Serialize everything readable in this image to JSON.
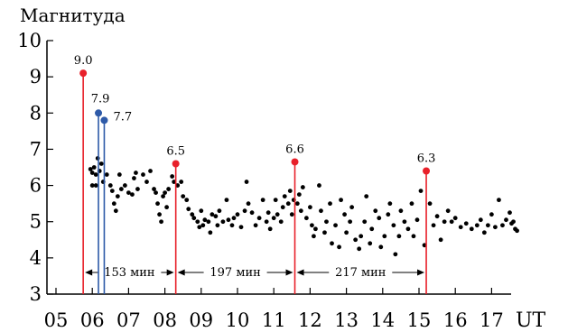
{
  "chart_data": {
    "type": "scatter",
    "ylabel": "Магнитуда",
    "xlabel": "UT",
    "ylim": [
      3,
      10
    ],
    "xlim": [
      5,
      18
    ],
    "x_ticks": [
      "05",
      "06",
      "07",
      "08",
      "09",
      "10",
      "11",
      "12",
      "13",
      "14",
      "15",
      "16",
      "17"
    ],
    "y_ticks": [
      "3",
      "4",
      "5",
      "6",
      "7",
      "8",
      "9",
      "10"
    ],
    "grid": false,
    "colors": {
      "dots": "#000000",
      "red": "#e8202a",
      "blue": "#2e5aa8"
    },
    "main_shocks": [
      {
        "x": 5.75,
        "y": 9.1,
        "label": "9.0",
        "color": "red"
      },
      {
        "x": 6.17,
        "y": 8.0,
        "label": "7.9",
        "color": "blue"
      },
      {
        "x": 6.33,
        "y": 7.8,
        "label": "7.7",
        "color": "blue"
      },
      {
        "x": 8.3,
        "y": 6.6,
        "label": "6.5",
        "color": "red"
      },
      {
        "x": 11.58,
        "y": 6.65,
        "label": "6.6",
        "color": "red"
      },
      {
        "x": 15.2,
        "y": 6.4,
        "label": "6.3",
        "color": "red"
      }
    ],
    "intervals": [
      {
        "from": 5.75,
        "to": 8.3,
        "label": "153 мин"
      },
      {
        "from": 8.3,
        "to": 11.58,
        "label": "197 мин"
      },
      {
        "from": 11.58,
        "to": 15.2,
        "label": "217 мин"
      }
    ],
    "aftershocks": [
      [
        5.95,
        6.45
      ],
      [
        6.0,
        6.35
      ],
      [
        6.05,
        6.5
      ],
      [
        6.1,
        6.3
      ],
      [
        6.15,
        6.75
      ],
      [
        6.2,
        6.4
      ],
      [
        6.25,
        6.6
      ],
      [
        6.0,
        6.0
      ],
      [
        6.1,
        6.0
      ],
      [
        6.3,
        6.1
      ],
      [
        6.4,
        6.3
      ],
      [
        6.5,
        6.0
      ],
      [
        6.55,
        5.85
      ],
      [
        6.6,
        5.5
      ],
      [
        6.65,
        5.3
      ],
      [
        6.7,
        5.7
      ],
      [
        6.75,
        6.3
      ],
      [
        6.8,
        5.9
      ],
      [
        6.9,
        6.0
      ],
      [
        7.0,
        5.8
      ],
      [
        7.1,
        5.75
      ],
      [
        7.15,
        6.2
      ],
      [
        7.2,
        6.35
      ],
      [
        7.25,
        5.9
      ],
      [
        7.4,
        6.3
      ],
      [
        7.5,
        6.1
      ],
      [
        7.6,
        6.4
      ],
      [
        7.7,
        5.9
      ],
      [
        7.75,
        5.8
      ],
      [
        7.8,
        5.5
      ],
      [
        7.85,
        5.2
      ],
      [
        7.9,
        5.0
      ],
      [
        7.95,
        5.7
      ],
      [
        8.0,
        5.8
      ],
      [
        8.05,
        5.4
      ],
      [
        8.1,
        5.9
      ],
      [
        8.2,
        6.25
      ],
      [
        8.25,
        6.1
      ],
      [
        8.35,
        6.0
      ],
      [
        8.45,
        6.1
      ],
      [
        8.5,
        5.7
      ],
      [
        8.6,
        5.6
      ],
      [
        8.65,
        5.35
      ],
      [
        8.75,
        5.2
      ],
      [
        8.8,
        5.1
      ],
      [
        8.9,
        5.0
      ],
      [
        8.95,
        4.85
      ],
      [
        9.0,
        5.3
      ],
      [
        9.05,
        4.9
      ],
      [
        9.1,
        5.05
      ],
      [
        9.2,
        5.0
      ],
      [
        9.25,
        4.7
      ],
      [
        9.3,
        5.2
      ],
      [
        9.4,
        5.15
      ],
      [
        9.45,
        4.9
      ],
      [
        9.5,
        5.3
      ],
      [
        9.6,
        5.0
      ],
      [
        9.7,
        5.6
      ],
      [
        9.75,
        5.05
      ],
      [
        9.85,
        4.9
      ],
      [
        9.9,
        5.1
      ],
      [
        10.0,
        5.2
      ],
      [
        10.1,
        4.85
      ],
      [
        10.2,
        5.3
      ],
      [
        10.25,
        6.1
      ],
      [
        10.3,
        5.5
      ],
      [
        10.4,
        5.25
      ],
      [
        10.5,
        4.9
      ],
      [
        10.6,
        5.1
      ],
      [
        10.7,
        5.6
      ],
      [
        10.8,
        5.0
      ],
      [
        10.85,
        5.25
      ],
      [
        10.9,
        4.8
      ],
      [
        11.0,
        5.1
      ],
      [
        11.05,
        5.6
      ],
      [
        11.1,
        5.2
      ],
      [
        11.2,
        5.0
      ],
      [
        11.25,
        5.4
      ],
      [
        11.3,
        5.7
      ],
      [
        11.4,
        5.5
      ],
      [
        11.45,
        5.85
      ],
      [
        11.5,
        5.2
      ],
      [
        11.55,
        5.6
      ],
      [
        11.65,
        5.5
      ],
      [
        11.7,
        5.75
      ],
      [
        11.75,
        5.3
      ],
      [
        11.8,
        5.95
      ],
      [
        11.9,
        5.1
      ],
      [
        12.0,
        5.4
      ],
      [
        12.05,
        4.9
      ],
      [
        12.1,
        4.6
      ],
      [
        12.15,
        4.8
      ],
      [
        12.25,
        6.0
      ],
      [
        12.3,
        5.3
      ],
      [
        12.4,
        4.7
      ],
      [
        12.45,
        5.0
      ],
      [
        12.55,
        5.5
      ],
      [
        12.6,
        4.4
      ],
      [
        12.7,
        4.9
      ],
      [
        12.8,
        4.3
      ],
      [
        12.85,
        5.6
      ],
      [
        12.95,
        5.2
      ],
      [
        13.0,
        4.7
      ],
      [
        13.1,
        5.0
      ],
      [
        13.15,
        5.4
      ],
      [
        13.25,
        4.5
      ],
      [
        13.35,
        4.25
      ],
      [
        13.4,
        4.6
      ],
      [
        13.5,
        5.0
      ],
      [
        13.55,
        5.7
      ],
      [
        13.65,
        4.4
      ],
      [
        13.7,
        4.8
      ],
      [
        13.8,
        5.3
      ],
      [
        13.9,
        5.1
      ],
      [
        13.95,
        4.3
      ],
      [
        14.05,
        4.6
      ],
      [
        14.15,
        5.2
      ],
      [
        14.2,
        5.5
      ],
      [
        14.3,
        4.9
      ],
      [
        14.35,
        4.1
      ],
      [
        14.45,
        4.6
      ],
      [
        14.5,
        5.3
      ],
      [
        14.6,
        5.0
      ],
      [
        14.7,
        4.8
      ],
      [
        14.8,
        5.5
      ],
      [
        14.85,
        4.6
      ],
      [
        14.95,
        5.05
      ],
      [
        15.05,
        5.85
      ],
      [
        15.15,
        4.35
      ],
      [
        15.3,
        5.5
      ],
      [
        15.4,
        4.9
      ],
      [
        15.5,
        5.15
      ],
      [
        15.6,
        4.5
      ],
      [
        15.7,
        5.0
      ],
      [
        15.8,
        5.3
      ],
      [
        15.9,
        5.0
      ],
      [
        16.0,
        5.1
      ],
      [
        16.15,
        4.85
      ],
      [
        16.3,
        4.95
      ],
      [
        16.45,
        4.8
      ],
      [
        16.6,
        4.9
      ],
      [
        16.7,
        5.05
      ],
      [
        16.8,
        4.7
      ],
      [
        16.9,
        4.9
      ],
      [
        17.0,
        5.2
      ],
      [
        17.1,
        4.85
      ],
      [
        17.2,
        5.6
      ],
      [
        17.3,
        4.9
      ],
      [
        17.4,
        5.05
      ],
      [
        17.5,
        5.25
      ],
      [
        17.55,
        4.95
      ],
      [
        17.6,
        5.0
      ],
      [
        17.7,
        4.75
      ],
      [
        17.65,
        4.8
      ]
    ]
  }
}
